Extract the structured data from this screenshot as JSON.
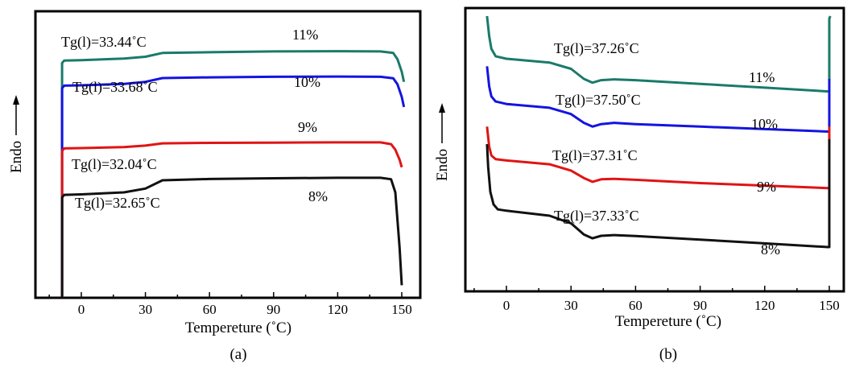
{
  "chart_data": [
    {
      "type": "line",
      "panel_label": "(a)",
      "xlabel": "Tempereture (˚C)",
      "ylabel": "Endo",
      "xlim": [
        -10,
        155
      ],
      "xticks": [
        0,
        30,
        60,
        90,
        120,
        150
      ],
      "xtick_labels": [
        "0",
        "30",
        "60",
        "90",
        "120",
        "150"
      ],
      "yticks_visible": false,
      "colors": {
        "11%": "#1a7a6a",
        "10%": "#1414e0",
        "9%": "#e01414",
        "8%": "#111111"
      },
      "series": [
        {
          "name": "11%",
          "color": "#1a7a6a",
          "tg_label": "Tg(l)=33.44˚C",
          "x": [
            -9,
            -9,
            -8,
            0,
            20,
            30,
            38,
            60,
            90,
            120,
            140,
            146,
            148,
            150,
            151
          ],
          "y": [
            0.0,
            0.935,
            0.945,
            0.946,
            0.953,
            0.96,
            0.975,
            0.978,
            0.981,
            0.982,
            0.981,
            0.975,
            0.95,
            0.9,
            0.86
          ]
        },
        {
          "name": "10%",
          "color": "#1414e0",
          "tg_label": "Tg(l)=33.68˚C",
          "x": [
            -9,
            -9,
            -8,
            0,
            20,
            30,
            38,
            60,
            90,
            120,
            140,
            146,
            148,
            150,
            151
          ],
          "y": [
            0.0,
            0.835,
            0.845,
            0.846,
            0.852,
            0.86,
            0.875,
            0.878,
            0.88,
            0.881,
            0.88,
            0.874,
            0.85,
            0.8,
            0.76
          ]
        },
        {
          "name": "9%",
          "color": "#e01414",
          "tg_label": "Tg(l)=32.04˚C",
          "x": [
            -9,
            -9,
            -8,
            0,
            20,
            30,
            38,
            60,
            90,
            120,
            140,
            145,
            147,
            149,
            150
          ],
          "y": [
            0.0,
            0.585,
            0.595,
            0.596,
            0.6,
            0.606,
            0.615,
            0.617,
            0.618,
            0.619,
            0.619,
            0.612,
            0.59,
            0.55,
            0.52
          ]
        },
        {
          "name": "8%",
          "color": "#111111",
          "tg_label": "Tg(l)=32.65˚C",
          "x": [
            -9,
            -9,
            -8,
            0,
            20,
            30,
            38,
            60,
            90,
            120,
            140,
            145,
            147,
            149,
            150
          ],
          "y": [
            0.0,
            0.4,
            0.41,
            0.412,
            0.42,
            0.435,
            0.468,
            0.473,
            0.476,
            0.478,
            0.478,
            0.472,
            0.42,
            0.2,
            0.05
          ]
        }
      ],
      "annotations": [
        {
          "text": "Tg(l)=33.44˚C"
        },
        {
          "text": "11%"
        },
        {
          "text": "Tg(l)=33.68˚C"
        },
        {
          "text": "10%"
        },
        {
          "text": "9%"
        },
        {
          "text": "Tg(l)=32.04˚C"
        },
        {
          "text": "Tg(l)=32.65˚C"
        },
        {
          "text": "8%"
        }
      ]
    },
    {
      "type": "line",
      "panel_label": "(b)",
      "xlabel": "Tempereture (˚C)",
      "ylabel": "Endo",
      "xlim": [
        -12,
        157
      ],
      "xticks": [
        0,
        30,
        60,
        90,
        120,
        150
      ],
      "xtick_labels": [
        "0",
        "30",
        "60",
        "90",
        "120",
        "150"
      ],
      "yticks_visible": false,
      "colors": {
        "11%": "#1a7a6a",
        "10%": "#1414e0",
        "9%": "#e01414",
        "8%": "#111111"
      },
      "series": [
        {
          "name": "11%",
          "color": "#1a7a6a",
          "tg_label": "Tg(l)=37.26˚C",
          "x": [
            -9,
            -8,
            -7,
            -5,
            0,
            20,
            30,
            36,
            40,
            44,
            50,
            60,
            90,
            120,
            149.5,
            150,
            150,
            150.5
          ],
          "y": [
            1.0,
            0.92,
            0.87,
            0.84,
            0.83,
            0.815,
            0.79,
            0.75,
            0.735,
            0.745,
            0.748,
            0.745,
            0.73,
            0.715,
            0.7,
            0.7,
            0.99,
            1.0
          ]
        },
        {
          "name": "10%",
          "color": "#1414e0",
          "tg_label": "Tg(l)=37.50˚C",
          "x": [
            -9,
            -8,
            -7,
            -5,
            0,
            20,
            30,
            36,
            40,
            44,
            50,
            60,
            90,
            120,
            149.5,
            150,
            150
          ],
          "y": [
            0.8,
            0.72,
            0.68,
            0.66,
            0.65,
            0.635,
            0.61,
            0.575,
            0.56,
            0.57,
            0.575,
            0.57,
            0.56,
            0.55,
            0.54,
            0.54,
            0.75
          ]
        },
        {
          "name": "9%",
          "color": "#e01414",
          "tg_label": "Tg(l)=37.31˚C",
          "x": [
            -9,
            -8,
            -7,
            -5,
            0,
            20,
            30,
            36,
            40,
            44,
            50,
            60,
            90,
            120,
            149.5,
            150,
            150
          ],
          "y": [
            0.56,
            0.48,
            0.445,
            0.43,
            0.425,
            0.41,
            0.385,
            0.355,
            0.34,
            0.35,
            0.352,
            0.348,
            0.335,
            0.325,
            0.315,
            0.315,
            0.56
          ]
        },
        {
          "name": "8%",
          "color": "#111111",
          "tg_label": "Tg(l)=37.33˚C",
          "x": [
            -9,
            -8.5,
            -7.5,
            -6,
            -4,
            0,
            20,
            30,
            36,
            40,
            44,
            50,
            60,
            90,
            120,
            149.5,
            150,
            150
          ],
          "y": [
            0.49,
            0.4,
            0.3,
            0.25,
            0.23,
            0.225,
            0.205,
            0.175,
            0.13,
            0.115,
            0.125,
            0.128,
            0.124,
            0.11,
            0.095,
            0.08,
            0.08,
            0.51
          ]
        }
      ],
      "annotations": [
        {
          "text": "Tg(l)=37.26˚C"
        },
        {
          "text": "11%"
        },
        {
          "text": "Tg(l)=37.50˚C"
        },
        {
          "text": "10%"
        },
        {
          "text": "Tg(l)=37.31˚C"
        },
        {
          "text": "9%"
        },
        {
          "text": "Tg(l)=37.33˚C"
        },
        {
          "text": "8%"
        }
      ]
    }
  ]
}
